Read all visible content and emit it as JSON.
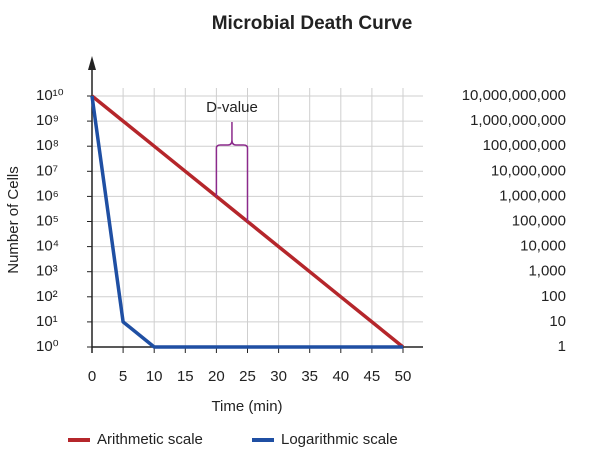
{
  "chart_data": {
    "type": "line",
    "title": "Microbial Death Curve",
    "x_label": "Time (min)",
    "y_label": "Number of Cells",
    "log_y": true,
    "grid": true,
    "legend": "bottom",
    "x": [
      0,
      5,
      10,
      15,
      20,
      25,
      30,
      35,
      40,
      45,
      50
    ],
    "xlim": [
      0,
      50
    ],
    "xticks": [
      0,
      5,
      10,
      15,
      20,
      25,
      30,
      35,
      40,
      45,
      50
    ],
    "ylim": [
      1,
      10000000000
    ],
    "yticks": [
      {
        "value": 1,
        "label": "10⁰"
      },
      {
        "value": 10,
        "label": "10¹"
      },
      {
        "value": 100,
        "label": "10²"
      },
      {
        "value": 1000,
        "label": "10³"
      },
      {
        "value": 10000,
        "label": "10⁴"
      },
      {
        "value": 100000,
        "label": "10⁵"
      },
      {
        "value": 1000000,
        "label": "10⁶"
      },
      {
        "value": 10000000,
        "label": "10⁷"
      },
      {
        "value": 100000000,
        "label": "10⁸"
      },
      {
        "value": 1000000000,
        "label": "10⁹"
      },
      {
        "value": 10000000000,
        "label": "10¹⁰"
      }
    ],
    "y2lim": [
      1,
      10000000000
    ],
    "y2ticks": [
      1,
      10,
      100,
      {
        "value": 1000,
        "label": "1,000"
      },
      {
        "value": 10000,
        "label": "10,000"
      },
      {
        "value": 100000,
        "label": "100,000"
      },
      {
        "value": 1000000,
        "label": "1,000,000"
      },
      {
        "value": 10000000,
        "label": "10,000,000"
      },
      {
        "value": 100000000,
        "label": "100,000,000"
      },
      {
        "value": 1000000000,
        "label": "1,000,000,000"
      },
      {
        "value": 10000000000,
        "label": "10,000,000,000"
      }
    ],
    "y_tick_color": "#b5262b",
    "y2_tick_color": "#2a47a3",
    "annotations": [
      {
        "text": "D-value",
        "x": [
          20,
          25
        ],
        "color": "#8b2a8b"
      }
    ],
    "series": [
      {
        "name": "Arithmetic scale",
        "color": "#b5262b",
        "values": [
          10000000000,
          1000000000,
          100000000,
          10000000,
          1000000,
          100000,
          10000,
          1000,
          100,
          10,
          1
        ]
      },
      {
        "name": "Logarithmic scale",
        "color": "#1f4fa3",
        "values": [
          10000000000,
          10,
          1,
          1,
          1,
          1,
          1,
          1,
          1,
          1,
          1
        ]
      }
    ]
  }
}
